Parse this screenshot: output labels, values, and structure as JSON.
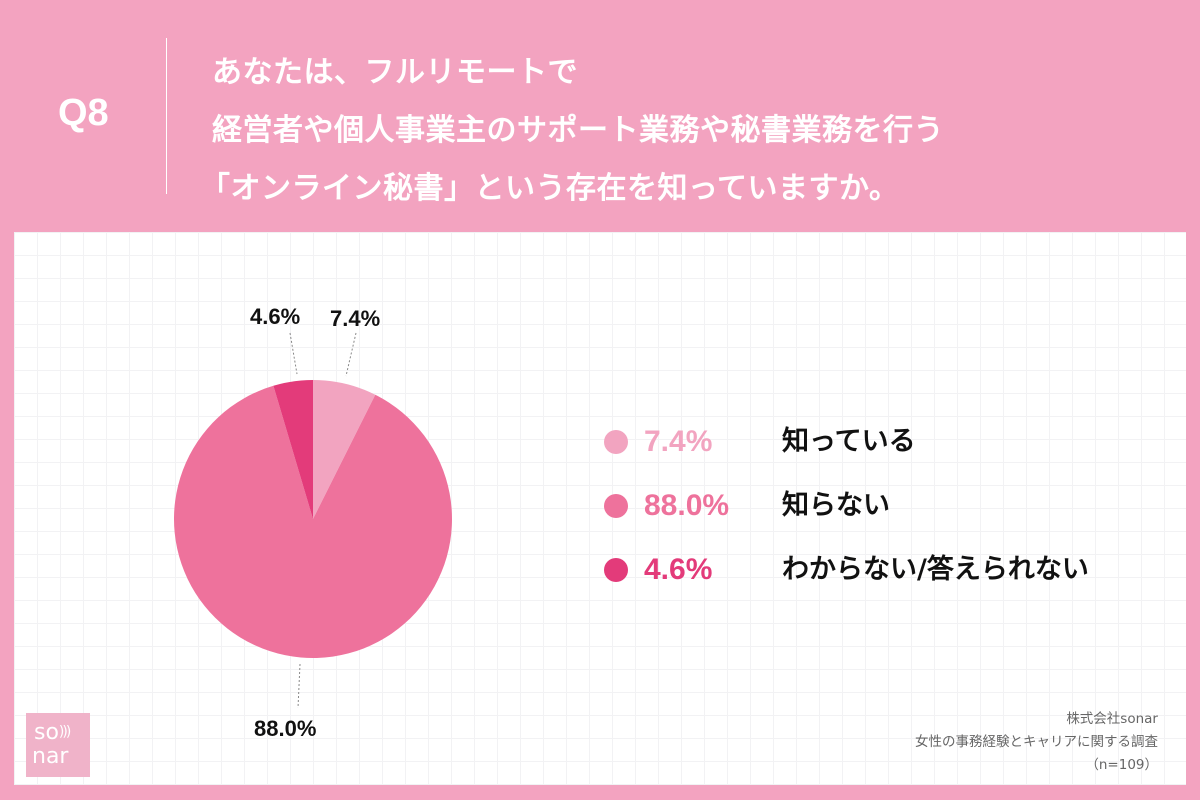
{
  "header": {
    "question_number": "Q8",
    "question_lines": [
      "あなたは、フルリモートで",
      "経営者や個人事業主のサポート業務や秘書業務を行う",
      "「オンライン秘書」という存在を知っていますか。"
    ]
  },
  "colors": {
    "background": "#f3a3c0",
    "know": "#f2a4c0",
    "dont_know": "#ee729c",
    "unsure": "#e33b7a"
  },
  "pie_labels": {
    "know": "7.4%",
    "dont_know": "88.0%",
    "unsure": "4.6%"
  },
  "legend": [
    {
      "pct": "7.4%",
      "label": "知っている",
      "color": "#f2a4c0"
    },
    {
      "pct": "88.0%",
      "label": "知らない",
      "color": "#ee729c"
    },
    {
      "pct": "4.6%",
      "label": "わからない/答えられない",
      "color": "#e33b7a"
    }
  ],
  "logo": {
    "line1": "so",
    "line2": "nar",
    "waves": ")))"
  },
  "source": {
    "company": "株式会社sonar",
    "survey": "女性の事務経験とキャリアに関する調査",
    "sample": "（n=109）"
  },
  "chart_data": {
    "type": "pie",
    "title": "あなたは、フルリモートで経営者や個人事業主のサポート業務や秘書業務を行う「オンライン秘書」という存在を知っていますか。",
    "categories": [
      "知っている",
      "知らない",
      "わからない/答えられない"
    ],
    "values": [
      7.4,
      88.0,
      4.6
    ],
    "unit": "%",
    "colors": [
      "#f2a4c0",
      "#ee729c",
      "#e33b7a"
    ],
    "start_angle": "12 o'clock, clockwise",
    "legend_position": "right",
    "n": 109
  }
}
